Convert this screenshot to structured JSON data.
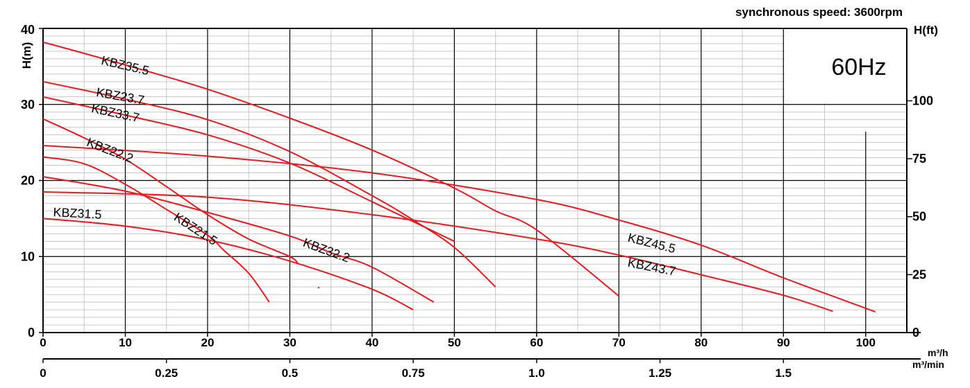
{
  "chart_data": {
    "type": "line",
    "subtitle": "synchronous speed: 3600rpm",
    "badge": "60Hz",
    "ylabel_left": "H(m)",
    "ylabel_right": "H(ft)",
    "xunit_top": "m³/h",
    "xunit_bottom": "m³/min",
    "xlim": [
      0,
      105
    ],
    "ylim": [
      0,
      40
    ],
    "x_ticks": [
      0,
      10,
      20,
      30,
      40,
      50,
      60,
      70,
      80,
      90,
      100
    ],
    "x_ticks_bottom": [
      "0",
      "0.25",
      "0.5",
      "0.75",
      "1.0",
      "1.25",
      "1.5"
    ],
    "y_ticks": [
      0,
      10,
      20,
      30,
      40
    ],
    "y_ticks_right": [
      "0",
      "25",
      "50",
      "75",
      "100"
    ],
    "grid": true,
    "colors": {
      "curve": "#e8191f",
      "badge": "#1f6fc5",
      "grid_major": "#000000",
      "grid_minor": "#c8c8c8"
    },
    "series": [
      {
        "name": "KBZ35.5",
        "x": [
          0,
          10,
          20,
          30,
          40,
          50,
          55,
          60,
          70
        ],
        "y": [
          38.2,
          35.2,
          32,
          28.2,
          24,
          19,
          16,
          13.5,
          4.8
        ]
      },
      {
        "name": "KBZ23.7",
        "x": [
          0,
          10,
          20,
          30,
          40,
          45,
          50,
          55
        ],
        "y": [
          33,
          30.7,
          28,
          23.8,
          18,
          14.8,
          11.2,
          6
        ]
      },
      {
        "name": "KBZ33.7",
        "x": [
          0,
          10,
          20,
          30,
          40,
          45,
          50
        ],
        "y": [
          31,
          28.6,
          26,
          22.3,
          17.2,
          14.6,
          12
        ]
      },
      {
        "name": "KBZ22.2",
        "x": [
          0,
          5,
          10,
          15,
          20,
          25,
          30,
          31
        ],
        "y": [
          28.1,
          25.6,
          22.8,
          19.2,
          15.5,
          12.3,
          10,
          9
        ]
      },
      {
        "name": "KBZ45.5",
        "x": [
          0,
          20,
          40,
          60,
          70,
          80,
          90,
          100,
          101
        ],
        "y": [
          24.6,
          23.2,
          21,
          17.5,
          14.8,
          11.5,
          7.2,
          3.2,
          2.8
        ]
      },
      {
        "name": "KBZ21.5",
        "x": [
          0,
          5,
          10,
          15,
          20,
          22,
          25,
          27.5
        ],
        "y": [
          23.1,
          22.2,
          19.5,
          16.2,
          12.8,
          10.8,
          7.8,
          4
        ]
      },
      {
        "name": "KBZ32.2",
        "x": [
          0,
          10,
          20,
          30,
          35,
          40,
          47.5
        ],
        "y": [
          20.5,
          18.6,
          15.8,
          12.7,
          10.5,
          8.6,
          4
        ]
      },
      {
        "name": "KBZ43.7",
        "x": [
          0,
          20,
          40,
          60,
          70,
          80,
          90,
          96
        ],
        "y": [
          18.5,
          17.8,
          15.5,
          12.3,
          10.2,
          7.6,
          4.9,
          2.8
        ]
      },
      {
        "name": "KBZ31.5",
        "x": [
          0,
          10,
          20,
          30,
          40,
          45
        ],
        "y": [
          15,
          14,
          12.2,
          9.4,
          5.7,
          3
        ]
      }
    ],
    "labels": [
      {
        "text": "KBZ35.5",
        "x": 7,
        "y": 35.3,
        "angle": 13
      },
      {
        "text": "KBZ23.7",
        "x": 6.4,
        "y": 31.1,
        "angle": 10
      },
      {
        "text": "KBZ33.7",
        "x": 5.8,
        "y": 29.0,
        "angle": 12
      },
      {
        "text": "KBZ22.2",
        "x": 5.2,
        "y": 24.6,
        "angle": 21
      },
      {
        "text": "KBZ21.5",
        "x": 15.8,
        "y": 14.9,
        "angle": 33
      },
      {
        "text": "KBZ32.2",
        "x": 31.5,
        "y": 11.4,
        "angle": 20
      },
      {
        "text": "KBZ31.5",
        "x": 1.2,
        "y": 15.3,
        "angle": 3
      },
      {
        "text": "KBZ45.5",
        "x": 71,
        "y": 12.0,
        "angle": 14
      },
      {
        "text": "KBZ43.7",
        "x": 71,
        "y": 8.7,
        "angle": 11
      }
    ]
  }
}
